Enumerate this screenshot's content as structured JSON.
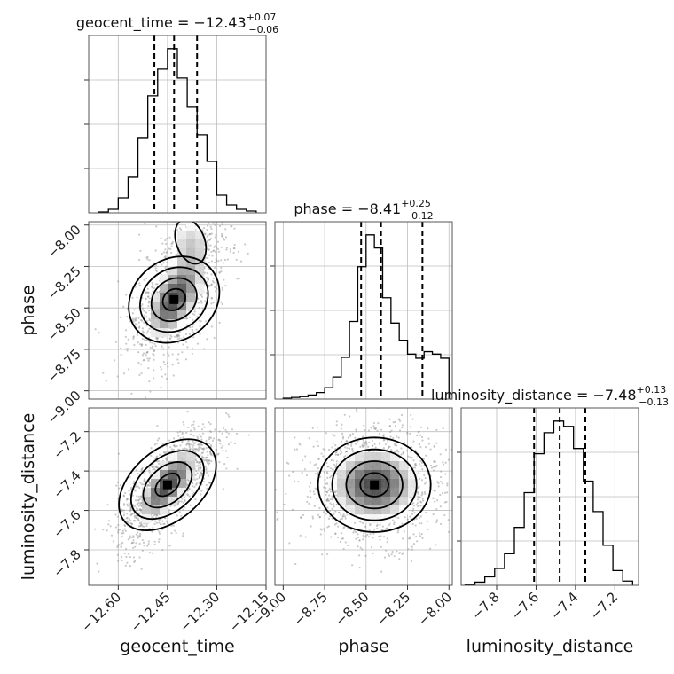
{
  "chart_data": {
    "type": "corner",
    "parameters": [
      "geocent_time",
      "phase",
      "luminosity_distance"
    ],
    "axis_labels": {
      "x": [
        "geocent_time",
        "phase",
        "luminosity_distance"
      ],
      "y": [
        "",
        "phase",
        "luminosity_distance"
      ]
    },
    "titles": [
      {
        "param": "geocent_time",
        "prefix": "geocent_time = ",
        "value": "−12.43",
        "plus": "+0.07",
        "minus": "−0.06"
      },
      {
        "param": "phase",
        "prefix": "phase = ",
        "value": "−8.41",
        "plus": "+0.25",
        "minus": "−0.12"
      },
      {
        "param": "luminosity_distance",
        "prefix": "luminosity_distance = ",
        "value": "−7.48",
        "plus": "+0.13",
        "minus": "−0.13"
      }
    ],
    "ranges": {
      "geocent_time": [
        -12.69,
        -12.15
      ],
      "phase": [
        -9.05,
        -7.98
      ],
      "luminosity_distance": [
        -7.98,
        -7.08
      ]
    },
    "ticks": {
      "geocent_time": {
        "values": [
          -12.6,
          -12.45,
          -12.3,
          -12.15
        ],
        "labels": [
          "−12.60",
          "−12.45",
          "−12.30",
          "−12.15"
        ]
      },
      "phase": {
        "values": [
          -9.0,
          -8.75,
          -8.5,
          -8.25,
          -8.0
        ],
        "labels": [
          "−9.00",
          "−8.75",
          "−8.50",
          "−8.25",
          "−8.00"
        ]
      },
      "luminosity_distance": {
        "values": [
          -7.8,
          -7.6,
          -7.4,
          -7.2
        ],
        "labels": [
          "−7.8",
          "−7.6",
          "−7.4",
          "−7.2"
        ]
      }
    },
    "quantiles": {
      "geocent_time": [
        -12.49,
        -12.43,
        -12.36
      ],
      "phase": [
        -8.53,
        -8.41,
        -8.16
      ],
      "luminosity_distance": [
        -7.61,
        -7.48,
        -7.35
      ]
    },
    "histograms": {
      "geocent_time": {
        "edges": [
          -12.66,
          -12.63,
          -12.6,
          -12.57,
          -12.54,
          -12.51,
          -12.48,
          -12.45,
          -12.42,
          -12.39,
          -12.36,
          -12.33,
          -12.3,
          -12.27,
          -12.24,
          -12.21,
          -12.18
        ],
        "counts": [
          1,
          4,
          17,
          40,
          84,
          132,
          162,
          185,
          152,
          119,
          88,
          58,
          20,
          9,
          4,
          2
        ]
      },
      "phase": {
        "edges": [
          -9.0,
          -8.95,
          -8.9,
          -8.85,
          -8.8,
          -8.75,
          -8.7,
          -8.65,
          -8.6,
          -8.55,
          -8.5,
          -8.45,
          -8.4,
          -8.35,
          -8.3,
          -8.25,
          -8.2,
          -8.15,
          -8.1,
          -8.05,
          -8.0
        ],
        "counts": [
          1,
          2,
          3,
          5,
          8,
          14,
          27,
          51,
          95,
          162,
          201,
          185,
          124,
          93,
          72,
          55,
          50,
          58,
          55,
          50
        ]
      },
      "luminosity_distance": {
        "edges": [
          -7.96,
          -7.91,
          -7.86,
          -7.81,
          -7.76,
          -7.71,
          -7.66,
          -7.61,
          -7.56,
          -7.51,
          -7.46,
          -7.41,
          -7.36,
          -7.31,
          -7.26,
          -7.21,
          -7.16,
          -7.11
        ],
        "counts": [
          1,
          3,
          8,
          16,
          30,
          55,
          88,
          125,
          145,
          156,
          151,
          130,
          99,
          70,
          38,
          14,
          4
        ]
      }
    },
    "grid": true,
    "density": {
      "phase|geocent_time": {
        "center": [
          -12.43,
          -8.45
        ],
        "sd": [
          0.055,
          0.15
        ],
        "rho": 0.55,
        "secondary": {
          "center": [
            -12.38,
            -8.1
          ],
          "sd": [
            0.05,
            0.12
          ]
        }
      },
      "luminosity_distance|geocent_time": {
        "center": [
          -12.45,
          -7.47
        ],
        "sd": [
          0.06,
          0.12
        ],
        "rho": 0.72
      },
      "luminosity_distance|phase": {
        "center": [
          -8.45,
          -7.47
        ],
        "sd": [
          0.17,
          0.12
        ],
        "rho": 0.0
      }
    }
  }
}
